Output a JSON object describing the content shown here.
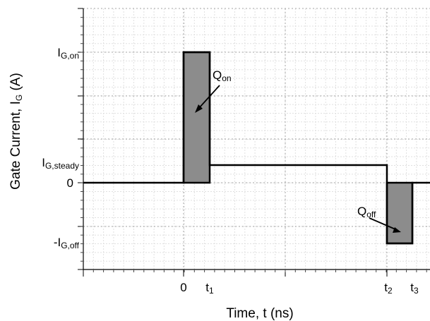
{
  "chart_data": {
    "type": "line",
    "xlabel": "Time, t (ns)",
    "ylabel": {
      "main": "Gate Current, I",
      "sub": "G",
      "unit": " (A)"
    },
    "x_ticks": [
      {
        "id": "t0",
        "text": "0",
        "sub": ""
      },
      {
        "id": "t1",
        "text": "t",
        "sub": "1"
      },
      {
        "id": "t2",
        "text": "t",
        "sub": "2"
      },
      {
        "id": "t3",
        "text": "t",
        "sub": "3"
      }
    ],
    "y_ticks": [
      {
        "id": "ig_on",
        "text": "I",
        "sub": "G,on",
        "value": 1.0
      },
      {
        "id": "ig_steady",
        "text": "I",
        "sub": "G,steady",
        "value": 0.14
      },
      {
        "id": "zero",
        "text": "0",
        "sub": "",
        "value": 0
      },
      {
        "id": "ig_off",
        "text": "-I",
        "sub": "G,off",
        "value": -0.46
      }
    ],
    "series": [
      {
        "x": [
          "<0",
          "0",
          "0",
          "t1",
          "t1",
          "t2",
          "t2",
          "t3",
          "t3",
          ">t3"
        ],
        "y": [
          0,
          0,
          1.0,
          1.0,
          0.14,
          0.14,
          -0.46,
          -0.46,
          0,
          0
        ]
      }
    ],
    "annotations": [
      {
        "id": "q_on",
        "text": "Q",
        "sub": "on"
      },
      {
        "id": "q_off",
        "text": "Q",
        "sub": "off"
      }
    ],
    "grid": true,
    "fill_color": "#8c8c8c",
    "grid_major_color": "#a6a6a6",
    "grid_minor_color": "#e0e0e0"
  }
}
